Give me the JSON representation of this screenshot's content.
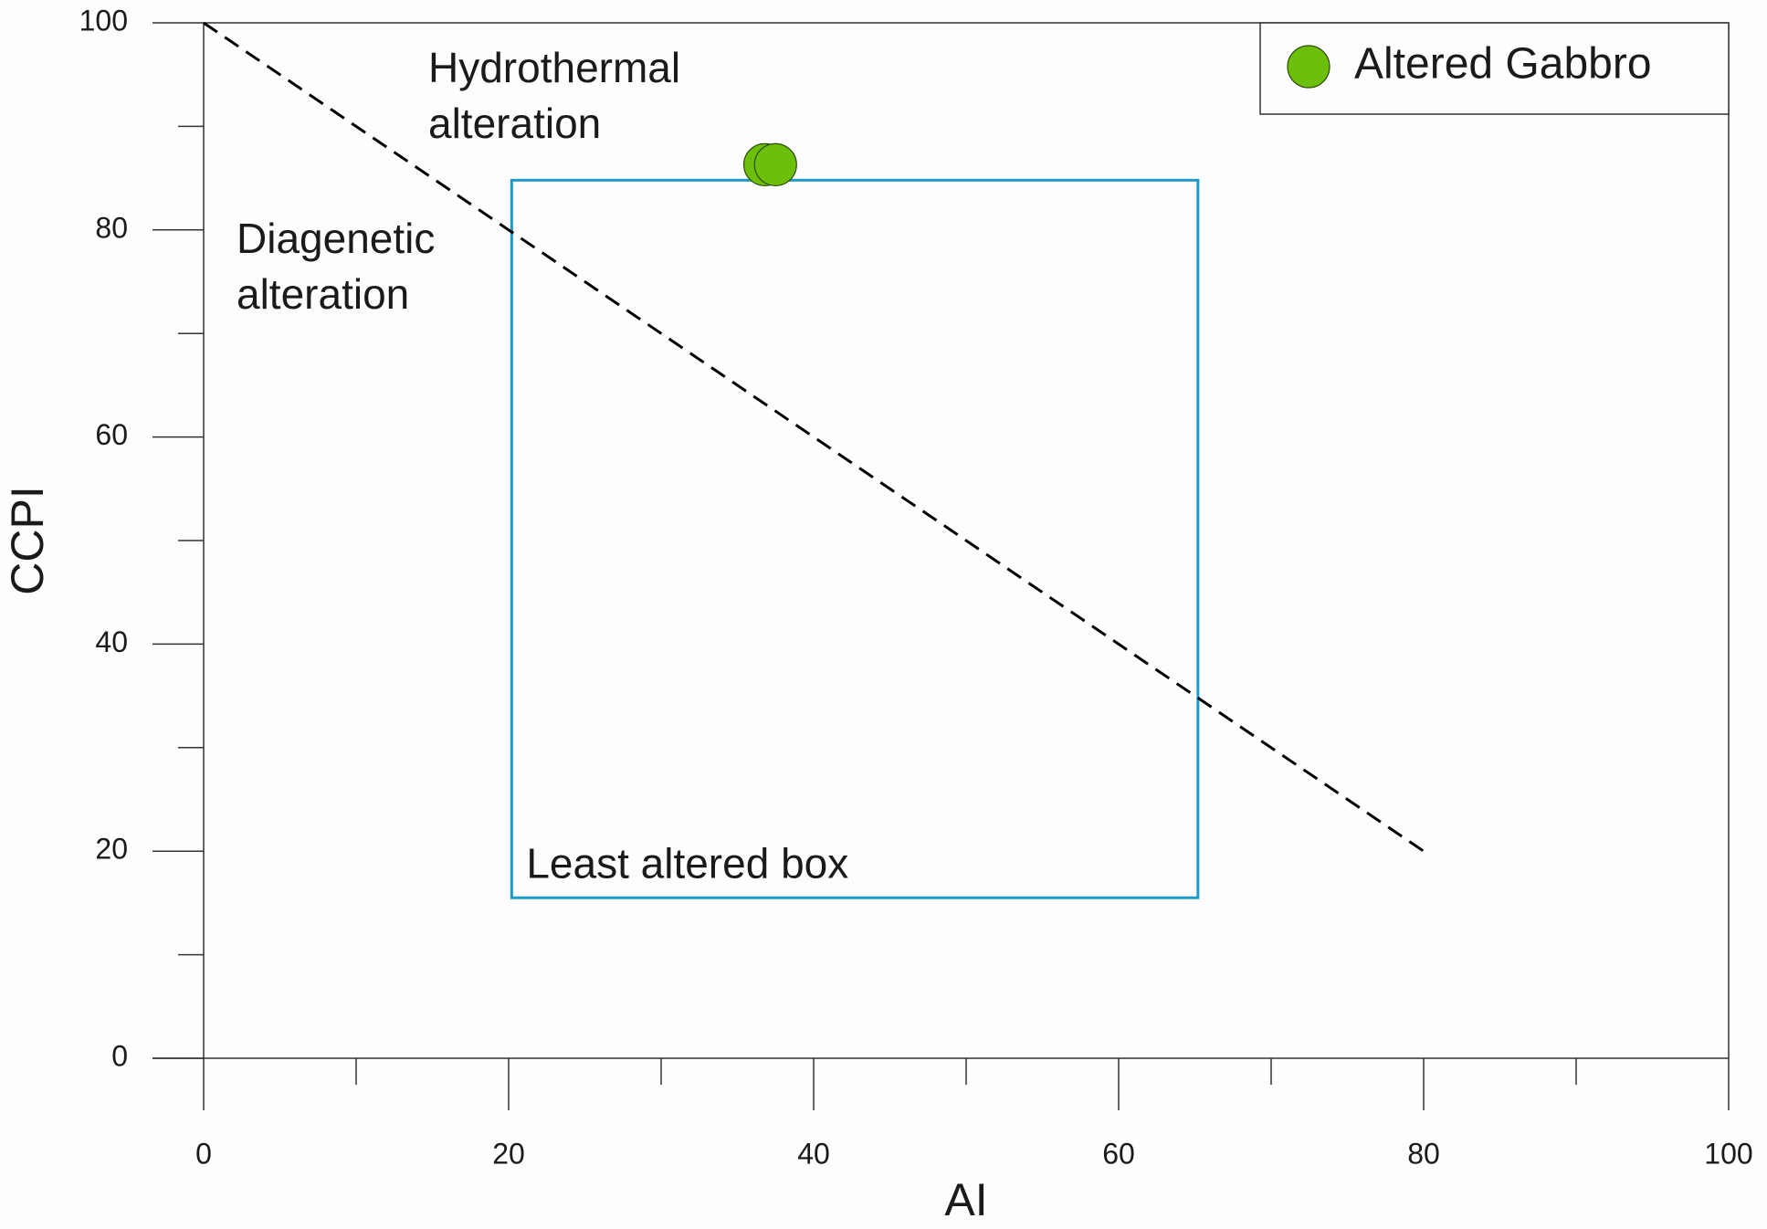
{
  "chart_data": {
    "type": "scatter",
    "xlabel": "AI",
    "ylabel": "CCPI",
    "xlim": [
      0,
      100
    ],
    "ylim": [
      0,
      100
    ],
    "xticks": [
      0,
      20,
      40,
      60,
      80,
      100
    ],
    "yticks": [
      0,
      20,
      40,
      60,
      80,
      100
    ],
    "xminorticks": [
      10,
      30,
      50,
      70,
      90
    ],
    "yminorticks": [
      10,
      30,
      50,
      70,
      90
    ],
    "series": [
      {
        "name": "Altered Gabbro",
        "color": "#6cbf0a",
        "x": [
          36.8,
          37.5
        ],
        "y": [
          86.3,
          86.3
        ]
      }
    ],
    "legend": "upper right",
    "reference_lines": [
      {
        "x": [
          0,
          80
        ],
        "y": [
          100,
          20
        ],
        "color": "#000000",
        "style": "dashed"
      }
    ],
    "boxes": [
      {
        "label": "Least altered box",
        "color": "#1a9bcb",
        "xlim": [
          20.2,
          65.2
        ],
        "ylim": [
          15.5,
          84.8
        ]
      }
    ],
    "annotations": [
      [
        "Hydrothermal",
        "alteration"
      ],
      [
        "Diagenetic",
        "alteration"
      ]
    ]
  }
}
